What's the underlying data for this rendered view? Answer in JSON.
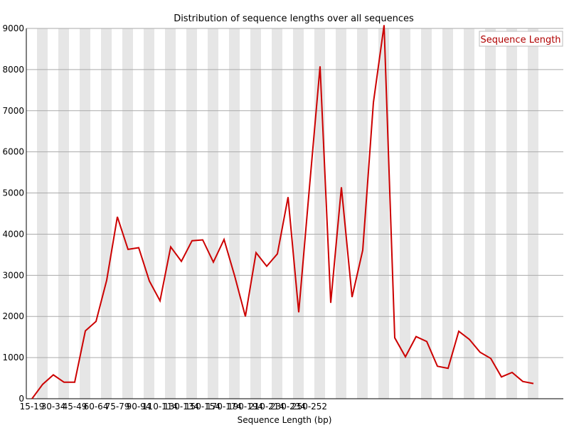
{
  "chart_data": {
    "type": "line",
    "title": "Distribution of sequence lengths over all sequences",
    "xlabel": "Sequence Length (bp)",
    "ylabel": "",
    "ylim": [
      0,
      9000
    ],
    "yticks": [
      0,
      1000,
      2000,
      3000,
      4000,
      5000,
      6000,
      7000,
      8000,
      9000
    ],
    "x_tick_labels": [
      "15-19",
      "30-34",
      "45-49",
      "60-64",
      "75-79",
      "90-94",
      "110-114",
      "130-134",
      "150-154",
      "170-174",
      "190-194",
      "210-214",
      "230-234",
      "250-252"
    ],
    "x_tick_label_indices": [
      0,
      2,
      4,
      6,
      8,
      10,
      12,
      14,
      16,
      18,
      20,
      22,
      24,
      26
    ],
    "grid": true,
    "legend_position": "top-right",
    "line_color": "#cc0000",
    "band_color": "#e6e6e6",
    "series": [
      {
        "name": "Sequence Length",
        "values": [
          0,
          350,
          580,
          400,
          400,
          1650,
          1880,
          2880,
          4420,
          3630,
          3670,
          2860,
          2380,
          3690,
          3340,
          3840,
          3860,
          3320,
          3870,
          2980,
          2000,
          3550,
          3220,
          3520,
          4900,
          2100,
          5120,
          8080,
          2330,
          5140,
          2470,
          3610,
          7200,
          9080,
          1480,
          1020,
          1510,
          1390,
          790,
          740,
          1640,
          1440,
          1130,
          980,
          530,
          640,
          420,
          370
        ]
      }
    ]
  }
}
